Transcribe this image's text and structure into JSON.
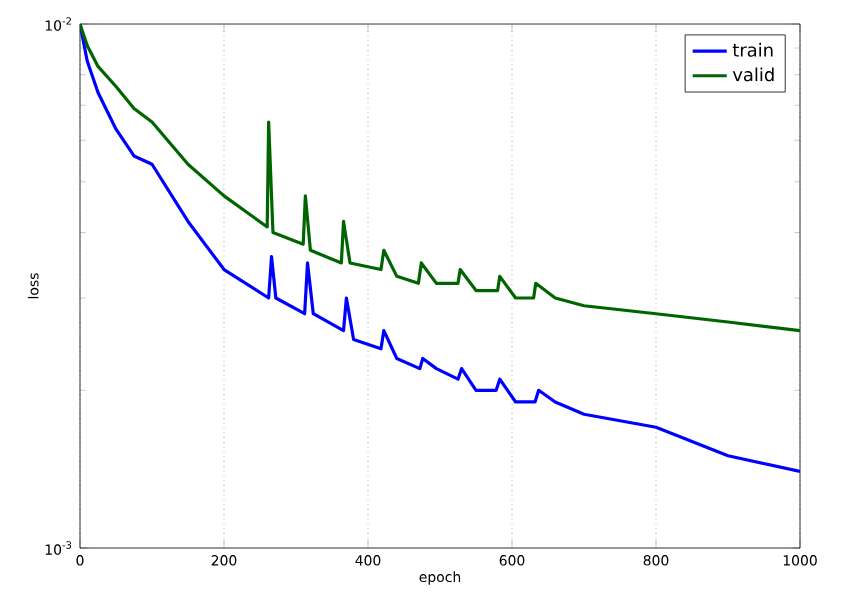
{
  "chart_data": {
    "type": "line",
    "xlabel": "epoch",
    "ylabel": "loss",
    "log": "y",
    "grid": "x",
    "legend": "top right",
    "line_style": "solid",
    "marker": "none",
    "xlim": [
      0,
      1000
    ],
    "ylim": [
      0.001,
      0.01
    ],
    "xticks": [
      0,
      200,
      400,
      600,
      800,
      1000
    ],
    "yticks": [
      {
        "value": 0.001,
        "label": "10$^{-3}$"
      },
      {
        "value": 0.01,
        "label": "10$^{-2}$"
      }
    ],
    "series": [
      {
        "name": "train",
        "color": "#0000ff",
        "x": [
          0,
          10,
          25,
          50,
          75,
          100,
          150,
          200,
          262,
          266,
          272,
          312,
          316,
          324,
          366,
          370,
          380,
          418,
          422,
          440,
          472,
          476,
          495,
          525,
          530,
          550,
          578,
          583,
          605,
          632,
          637,
          660,
          700,
          800,
          900,
          1000
        ],
        "values": [
          0.01,
          0.0085,
          0.0074,
          0.0063,
          0.0056,
          0.0054,
          0.0042,
          0.0034,
          0.003,
          0.0036,
          0.003,
          0.0028,
          0.0035,
          0.0028,
          0.0026,
          0.003,
          0.0025,
          0.0024,
          0.0026,
          0.0023,
          0.0022,
          0.0023,
          0.0022,
          0.0021,
          0.0022,
          0.002,
          0.002,
          0.0021,
          0.0019,
          0.0019,
          0.002,
          0.0019,
          0.0018,
          0.0017,
          0.0015,
          0.0014
        ]
      },
      {
        "name": "valid",
        "color": "#006400",
        "x": [
          0,
          10,
          25,
          50,
          75,
          100,
          150,
          200,
          260,
          262,
          268,
          310,
          313,
          320,
          363,
          366,
          375,
          418,
          422,
          440,
          470,
          474,
          495,
          525,
          528,
          550,
          580,
          583,
          605,
          630,
          633,
          660,
          700,
          800,
          900,
          1000
        ],
        "values": [
          0.01,
          0.0091,
          0.0083,
          0.0076,
          0.0069,
          0.0065,
          0.0054,
          0.0047,
          0.0041,
          0.0065,
          0.004,
          0.0038,
          0.0047,
          0.0037,
          0.0035,
          0.0042,
          0.0035,
          0.0034,
          0.0037,
          0.0033,
          0.0032,
          0.0035,
          0.0032,
          0.0032,
          0.0034,
          0.0031,
          0.0031,
          0.0033,
          0.003,
          0.003,
          0.0032,
          0.003,
          0.0029,
          0.0028,
          0.0027,
          0.0026
        ]
      }
    ]
  }
}
